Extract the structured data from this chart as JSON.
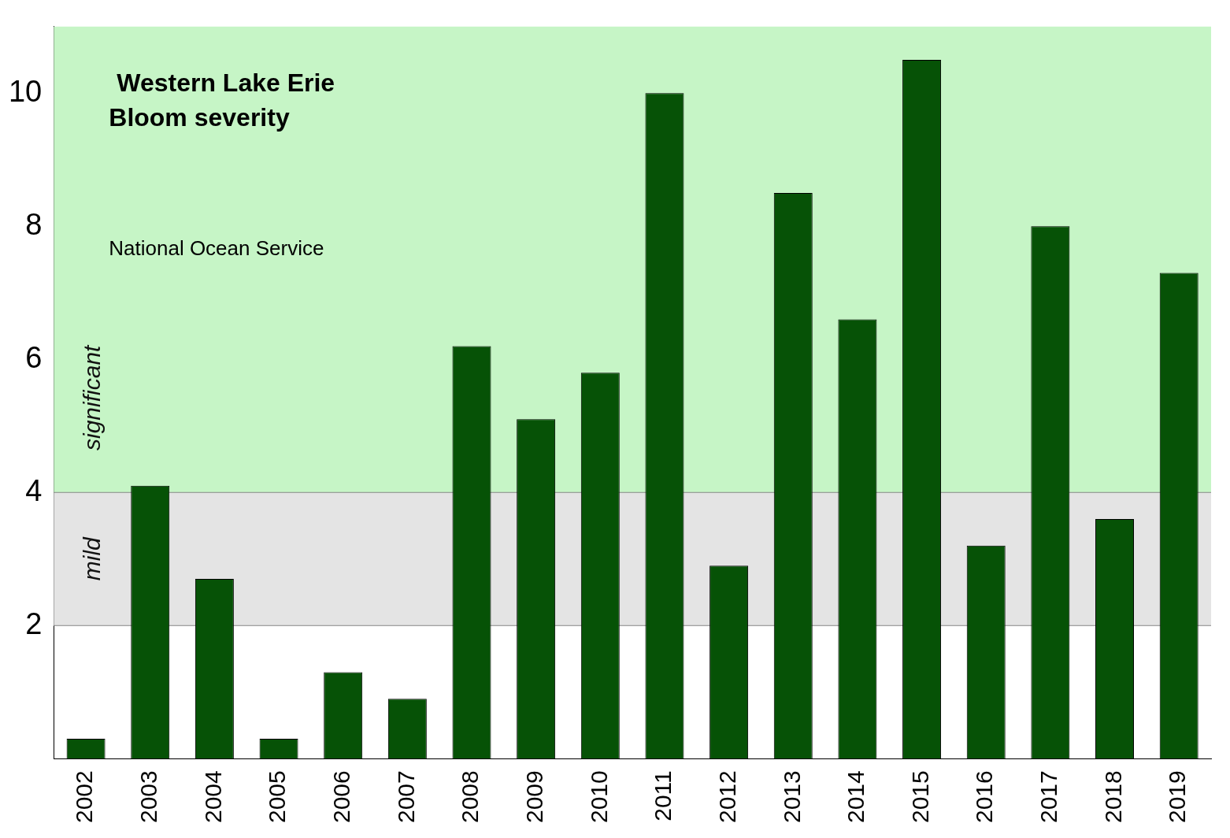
{
  "chart_data": {
    "type": "bar",
    "title": "Western Lake Erie",
    "subtitle": "Bloom severity",
    "annotations": [
      "National Ocean Service"
    ],
    "categories": [
      "2002",
      "2003",
      "2004",
      "2005",
      "2006",
      "2007",
      "2008",
      "2009",
      "2010",
      "2011",
      "2012",
      "2013",
      "2014",
      "2015",
      "2016",
      "2017",
      "2018",
      "2019"
    ],
    "values": [
      0.3,
      4.1,
      2.7,
      0.3,
      1.3,
      0.9,
      6.2,
      5.1,
      5.8,
      10.0,
      2.9,
      8.5,
      6.6,
      10.5,
      3.2,
      8.0,
      3.6,
      7.3
    ],
    "color": "#065206",
    "ylim": [
      0,
      11
    ],
    "yticks": [
      2,
      4,
      6,
      8,
      10
    ],
    "legend": false,
    "bands": [
      {
        "axis": "y",
        "from": 2,
        "to": 4,
        "label": "mild",
        "color": "#e4e4e4"
      },
      {
        "axis": "y",
        "from": 4,
        "to": 11,
        "label": "significant",
        "color": "#c6f5c6"
      }
    ]
  }
}
